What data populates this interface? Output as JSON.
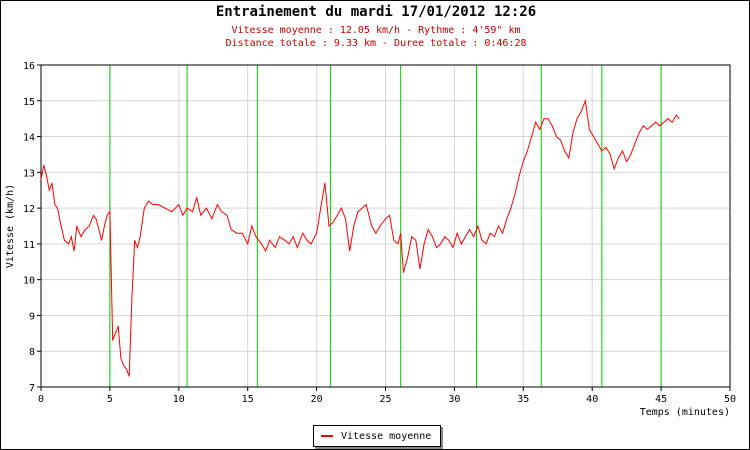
{
  "chart_data": {
    "type": "line",
    "title": "Entrainement du mardi 17/01/2012 12:26",
    "subtitle_lines": [
      "Vitesse moyenne : 12.05 km/h - Rythme : 4'59\" km",
      "Distance totale : 9.33 km - Duree totale : 0:46:28"
    ],
    "xlabel": "Temps (minutes)",
    "ylabel": "Vitesse (km/h)",
    "xlim": [
      0,
      50
    ],
    "ylim": [
      7,
      16
    ],
    "xticks": [
      0,
      5,
      10,
      15,
      20,
      25,
      30,
      35,
      40,
      45,
      50
    ],
    "yticks": [
      7,
      8,
      9,
      10,
      11,
      12,
      13,
      14,
      15,
      16
    ],
    "grid": true,
    "legend_position": "bottom-center",
    "marker_lines_x": [
      5.0,
      10.6,
      15.7,
      21.0,
      26.1,
      31.6,
      36.3,
      40.7,
      45.0
    ],
    "series": [
      {
        "name": "Vitesse moyenne",
        "color": "#ff0000",
        "x": [
          0,
          0.2,
          0.4,
          0.6,
          0.8,
          1.0,
          1.2,
          1.4,
          1.7,
          2.0,
          2.2,
          2.4,
          2.6,
          2.9,
          3.2,
          3.5,
          3.8,
          4.0,
          4.2,
          4.4,
          4.6,
          4.8,
          5.0,
          5.2,
          5.4,
          5.6,
          5.8,
          6.0,
          6.2,
          6.4,
          6.6,
          6.8,
          7.0,
          7.2,
          7.5,
          7.8,
          8.1,
          8.5,
          9.0,
          9.5,
          10.0,
          10.3,
          10.6,
          11.0,
          11.3,
          11.6,
          12.0,
          12.4,
          12.8,
          13.1,
          13.5,
          13.8,
          14.2,
          14.6,
          15.0,
          15.3,
          15.6,
          16.0,
          16.3,
          16.6,
          17.0,
          17.3,
          17.7,
          18.0,
          18.3,
          18.6,
          19.0,
          19.3,
          19.6,
          20.0,
          20.3,
          20.6,
          20.9,
          21.2,
          21.5,
          21.8,
          22.1,
          22.4,
          22.7,
          23.0,
          23.3,
          23.6,
          24.0,
          24.3,
          24.6,
          25.0,
          25.3,
          25.6,
          25.9,
          26.1,
          26.3,
          26.6,
          26.9,
          27.2,
          27.5,
          27.8,
          28.1,
          28.4,
          28.7,
          29.0,
          29.3,
          29.6,
          29.9,
          30.2,
          30.5,
          30.8,
          31.1,
          31.4,
          31.7,
          32.0,
          32.3,
          32.6,
          32.9,
          33.2,
          33.5,
          33.8,
          34.1,
          34.4,
          34.7,
          35.0,
          35.3,
          35.6,
          35.9,
          36.2,
          36.5,
          36.8,
          37.1,
          37.4,
          37.7,
          38.0,
          38.3,
          38.6,
          38.9,
          39.2,
          39.5,
          39.8,
          40.1,
          40.4,
          40.7,
          41.0,
          41.3,
          41.6,
          41.9,
          42.2,
          42.5,
          42.8,
          43.1,
          43.4,
          43.7,
          44.0,
          44.3,
          44.6,
          44.9,
          45.2,
          45.5,
          45.8,
          46.1,
          46.3
        ],
        "values": [
          12.8,
          13.2,
          12.9,
          12.5,
          12.7,
          12.1,
          12.0,
          11.6,
          11.1,
          11.0,
          11.2,
          10.8,
          11.5,
          11.2,
          11.4,
          11.5,
          11.8,
          11.7,
          11.4,
          11.1,
          11.5,
          11.8,
          11.9,
          8.3,
          8.5,
          8.7,
          7.8,
          7.6,
          7.5,
          7.3,
          9.5,
          11.1,
          10.9,
          11.2,
          12.0,
          12.2,
          12.1,
          12.1,
          12.0,
          11.9,
          12.1,
          11.8,
          12.0,
          11.9,
          12.3,
          11.8,
          12.0,
          11.7,
          12.1,
          11.9,
          11.8,
          11.4,
          11.3,
          11.3,
          11.0,
          11.5,
          11.2,
          11.0,
          10.8,
          11.1,
          10.9,
          11.2,
          11.1,
          11.0,
          11.2,
          10.9,
          11.3,
          11.1,
          11.0,
          11.3,
          12.0,
          12.7,
          11.5,
          11.6,
          11.8,
          12.0,
          11.7,
          10.8,
          11.5,
          11.9,
          12.0,
          12.1,
          11.5,
          11.3,
          11.5,
          11.7,
          11.8,
          11.1,
          11.0,
          11.3,
          10.2,
          10.6,
          11.2,
          11.1,
          10.3,
          11.0,
          11.4,
          11.2,
          10.9,
          11.0,
          11.2,
          11.1,
          10.9,
          11.3,
          11.0,
          11.2,
          11.4,
          11.2,
          11.5,
          11.1,
          11.0,
          11.3,
          11.2,
          11.5,
          11.3,
          11.7,
          12.0,
          12.4,
          12.9,
          13.3,
          13.6,
          14.0,
          14.4,
          14.2,
          14.5,
          14.5,
          14.3,
          14.0,
          13.9,
          13.6,
          13.4,
          14.1,
          14.5,
          14.7,
          15.0,
          14.2,
          14.0,
          13.8,
          13.6,
          13.7,
          13.5,
          13.1,
          13.4,
          13.6,
          13.3,
          13.5,
          13.8,
          14.1,
          14.3,
          14.2,
          14.3,
          14.4,
          14.3,
          14.4,
          14.5,
          14.4,
          14.6,
          14.5
        ]
      }
    ]
  }
}
